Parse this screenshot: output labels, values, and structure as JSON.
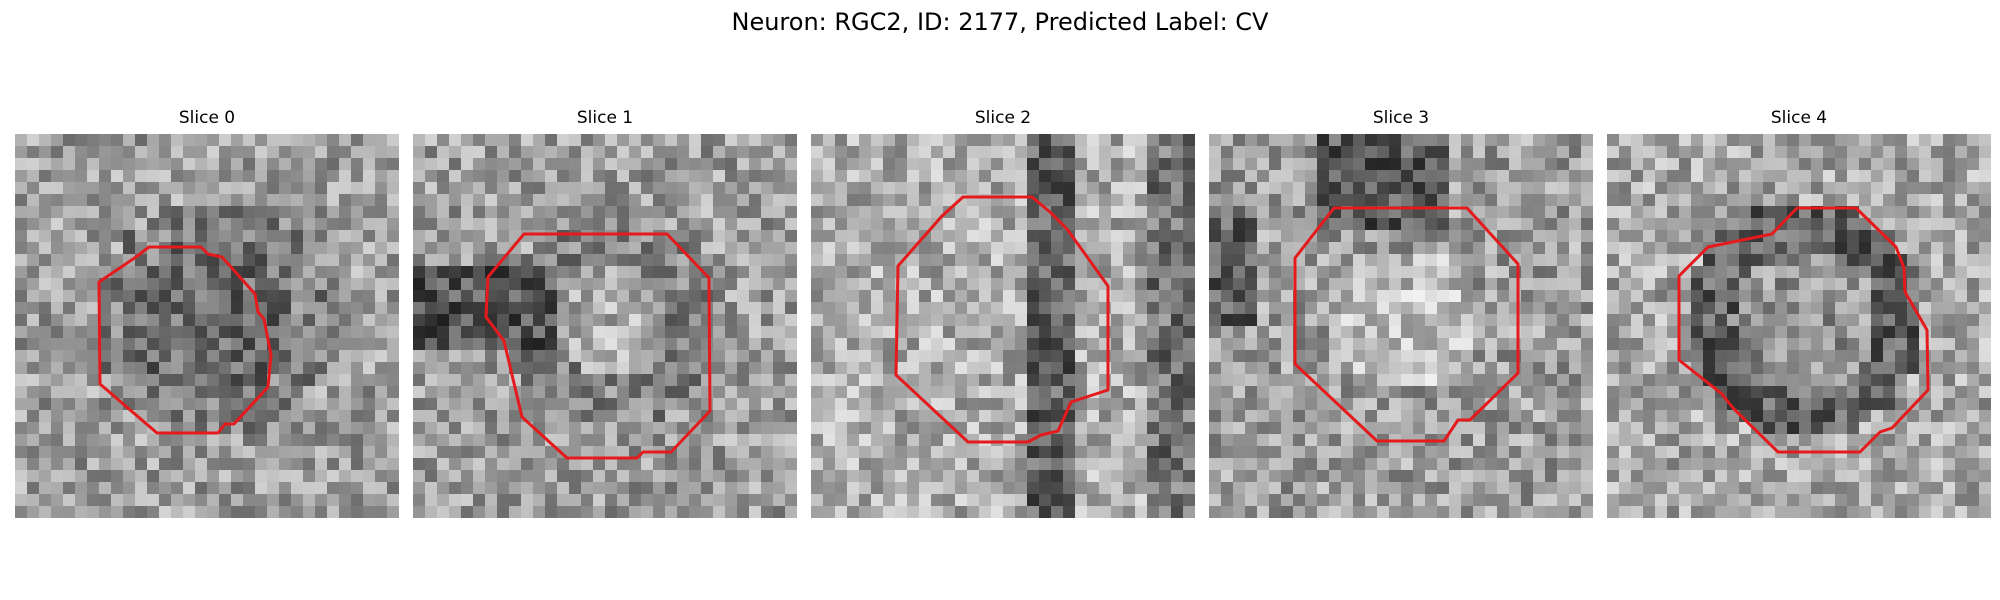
{
  "figure": {
    "title": "Neuron: RGC2, ID: 2177, Predicted Label: CV"
  },
  "panels": [
    {
      "title": "Slice 0"
    },
    {
      "title": "Slice 1"
    },
    {
      "title": "Slice 2"
    },
    {
      "title": "Slice 3"
    },
    {
      "title": "Slice 4"
    }
  ],
  "colors": {
    "contour": "#e41a1c",
    "background": "#ffffff"
  }
}
